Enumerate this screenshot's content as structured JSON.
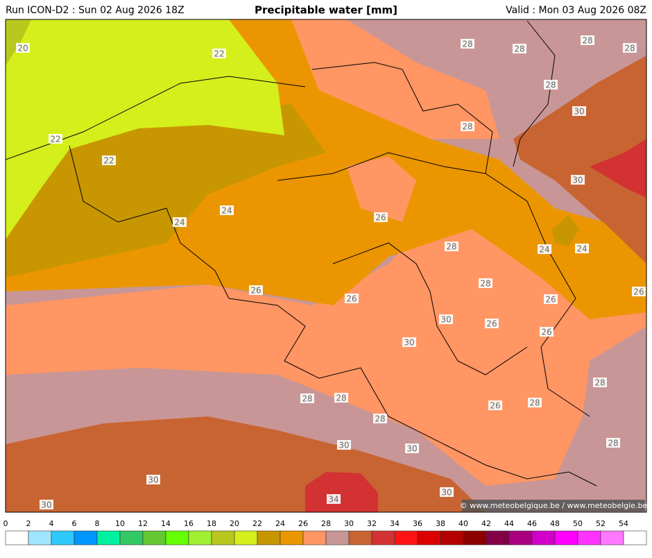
{
  "header": {
    "left": "Run ICON-D2 : Sun 02 Aug 2026 18Z",
    "title": "Precipitable water [mm]",
    "right": "Valid : Mon 03 Aug 2026 08Z"
  },
  "map": {
    "contour_labels": [
      20,
      22,
      28,
      28,
      28,
      28,
      28,
      30,
      22,
      22,
      28,
      30,
      24,
      24,
      26,
      28,
      24,
      24,
      26,
      26,
      28,
      26,
      26,
      30,
      26,
      30,
      26,
      28,
      28,
      28,
      26,
      28,
      28,
      30,
      30,
      28,
      30,
      30,
      30,
      34
    ],
    "credit": "© www.meteobelgique.be / www.meteobelgie.be"
  },
  "colorbar": {
    "ticks": [
      0,
      2,
      4,
      6,
      8,
      10,
      12,
      14,
      16,
      18,
      20,
      22,
      24,
      26,
      28,
      30,
      32,
      34,
      36,
      38,
      40,
      42,
      44,
      46,
      48,
      50,
      52,
      54
    ],
    "colors": [
      "#ffffff",
      "#a0e6ff",
      "#2fc8fa",
      "#0096ff",
      "#00f0a0",
      "#32c864",
      "#64c832",
      "#64ff00",
      "#a0f030",
      "#b9c81e",
      "#d4ef1b",
      "#c89600",
      "#eb9600",
      "#ff9664",
      "#c89696",
      "#c86432",
      "#d23232",
      "#ff1414",
      "#dc0000",
      "#b40000",
      "#8c0000",
      "#820046",
      "#aa0080",
      "#d200c8",
      "#ff00ff",
      "#ff32ff",
      "#ff78ff",
      "#ffffff"
    ]
  }
}
